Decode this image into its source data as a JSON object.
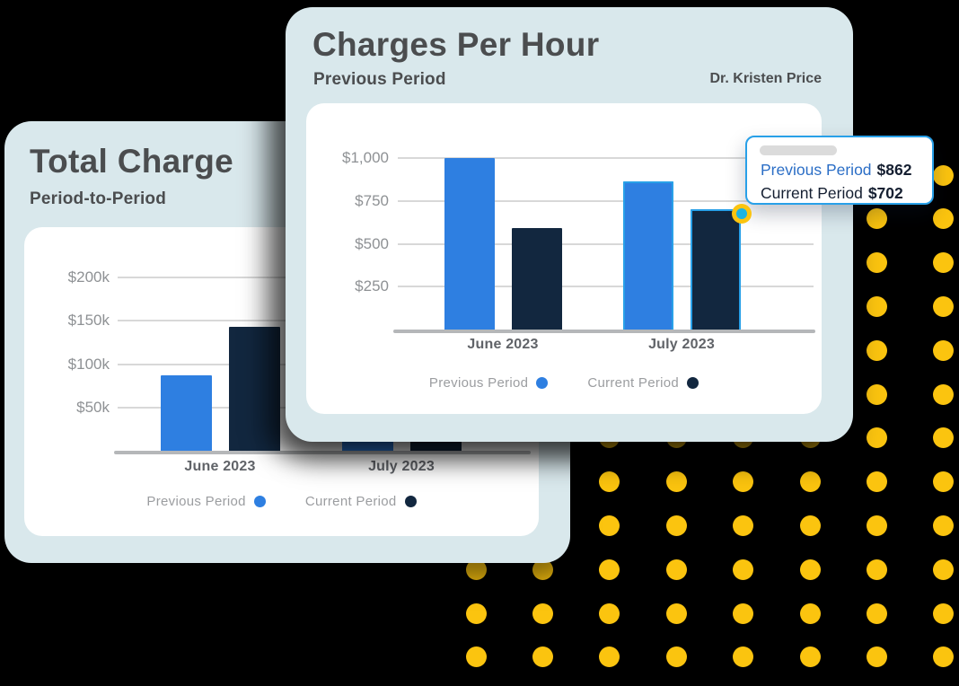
{
  "background": {
    "color": "#000000",
    "dot_color": "#FBC40F"
  },
  "colors": {
    "card_bg": "#D9E8EC",
    "panel_bg": "#FFFFFF",
    "title": "#4B4D4F",
    "axis_label": "#8E9194",
    "category_label": "#606368",
    "legend_label": "#9B9DA0",
    "gridline": "#D8D8D8",
    "baseline": "#B5B7B9",
    "previous_period": "#2E7FE1",
    "current_period": "#12273F",
    "highlight": "#28A0E8",
    "tooltip_label_blue": "#2B6EC6",
    "tooltip_text_dark": "#151F31",
    "marker_core": "#1CB4E2",
    "marker_ring": "#FBC40F"
  },
  "chart_data": [
    {
      "id": "charges-per-hour",
      "type": "bar",
      "title": "Charges Per Hour",
      "subtitle": "Previous Period",
      "annotation": "Dr. Kristen Price",
      "categories": [
        "June 2023",
        "July 2023"
      ],
      "series": [
        {
          "name": "Previous Period",
          "color_key": "previous_period",
          "values": [
            1000,
            862
          ]
        },
        {
          "name": "Current Period",
          "color_key": "current_period",
          "values": [
            590,
            702
          ]
        }
      ],
      "ylim": [
        0,
        1100
      ],
      "yticks": [
        {
          "value": 1000,
          "label": "$1,000"
        },
        {
          "value": 750,
          "label": "$750"
        },
        {
          "value": 500,
          "label": "$500"
        },
        {
          "value": 250,
          "label": "$250"
        }
      ],
      "legend_position": "bottom",
      "grid": true,
      "highlighted_category": "July 2023",
      "tooltip": {
        "rows": [
          {
            "label": "Previous Period",
            "value": "$862"
          },
          {
            "label": "Current Period",
            "value": "$702"
          }
        ]
      }
    },
    {
      "id": "total-charge",
      "type": "bar",
      "title": "Total Charge",
      "subtitle": "Period-to-Period",
      "categories": [
        "June 2023",
        "July 2023"
      ],
      "series": [
        {
          "name": "Previous Period",
          "color_key": "previous_period",
          "values": [
            87000,
            120000
          ]
        },
        {
          "name": "Current Period",
          "color_key": "current_period",
          "values": [
            143000,
            160000
          ]
        }
      ],
      "ylim": [
        0,
        225000
      ],
      "yticks": [
        {
          "value": 200000,
          "label": "$200k"
        },
        {
          "value": 150000,
          "label": "$150k"
        },
        {
          "value": 100000,
          "label": "$100k"
        },
        {
          "value": 50000,
          "label": "$50k"
        }
      ],
      "legend_position": "bottom",
      "grid": true
    }
  ]
}
